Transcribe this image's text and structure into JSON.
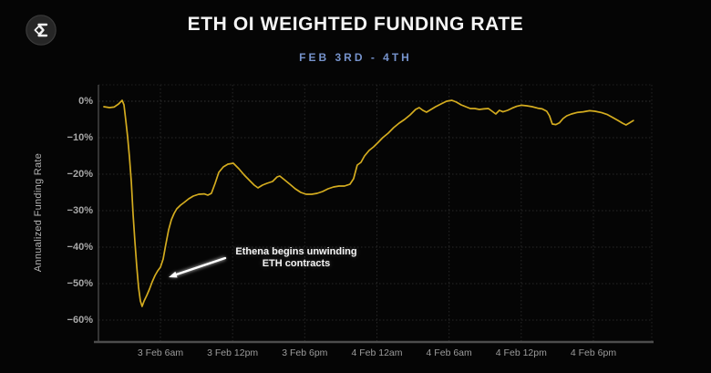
{
  "header": {
    "logo_icon": "sigma-diamond-logo",
    "title": "ETH OI WEIGHTED FUNDING RATE",
    "subtitle": "FEB 3RD - 4TH"
  },
  "colors": {
    "background": "#050505",
    "line": "#d4ac1f",
    "subtitle_accent": "#7693cc",
    "gridline": "#272727",
    "axis": "#4a4a4a",
    "tick_text": "#a8a8a8",
    "annotation_text": "#f4f4f4"
  },
  "chart_data": {
    "type": "line",
    "title": "ETH OI Weighted Funding Rate",
    "subtitle": "Feb 3rd - 4th",
    "ylabel": "Annualized Funding Rate",
    "x_unit": "hours since 3 Feb 12am",
    "ylim": [
      -65,
      5
    ],
    "grid": true,
    "y_ticks": [
      {
        "value": 0,
        "label": "0%"
      },
      {
        "value": -10,
        "label": "−10%"
      },
      {
        "value": -20,
        "label": "−20%"
      },
      {
        "value": -30,
        "label": "−30%"
      },
      {
        "value": -40,
        "label": "−40%"
      },
      {
        "value": -50,
        "label": "−50%"
      },
      {
        "value": -60,
        "label": "−60%"
      }
    ],
    "x_ticks": [
      {
        "hour": 6,
        "label": "3 Feb 6am"
      },
      {
        "hour": 12,
        "label": "3 Feb 12pm"
      },
      {
        "hour": 18,
        "label": "3 Feb 6pm"
      },
      {
        "hour": 24,
        "label": "4 Feb 12am"
      },
      {
        "hour": 30,
        "label": "4 Feb 6am"
      },
      {
        "hour": 36,
        "label": "4 Feb 12pm"
      },
      {
        "hour": 42,
        "label": "4 Feb 6pm"
      }
    ],
    "series": [
      {
        "name": "ETH OI weighted funding rate (annualized %)",
        "points": [
          [
            1.3,
            -1.5
          ],
          [
            1.76,
            -1.75
          ],
          [
            2.14,
            -1.6
          ],
          [
            2.52,
            -0.75
          ],
          [
            2.82,
            0.25
          ],
          [
            2.97,
            -1.0
          ],
          [
            3.12,
            -5.25
          ],
          [
            3.27,
            -9.75
          ],
          [
            3.42,
            -15.25
          ],
          [
            3.58,
            -22.25
          ],
          [
            3.73,
            -31
          ],
          [
            3.88,
            -38.5
          ],
          [
            4.03,
            -45.25
          ],
          [
            4.18,
            -51
          ],
          [
            4.33,
            -54.75
          ],
          [
            4.48,
            -56.25
          ],
          [
            4.64,
            -54.75
          ],
          [
            4.86,
            -53.25
          ],
          [
            5.09,
            -51.5
          ],
          [
            5.32,
            -49.5
          ],
          [
            5.55,
            -47.75
          ],
          [
            5.77,
            -46.5
          ],
          [
            6.0,
            -45.5
          ],
          [
            6.23,
            -43.25
          ],
          [
            6.45,
            -39.25
          ],
          [
            6.68,
            -35.25
          ],
          [
            6.91,
            -32.5
          ],
          [
            7.14,
            -30.75
          ],
          [
            7.36,
            -29.5
          ],
          [
            7.67,
            -28.5
          ],
          [
            7.97,
            -27.75
          ],
          [
            8.35,
            -26.75
          ],
          [
            8.73,
            -26
          ],
          [
            9.18,
            -25.5
          ],
          [
            9.64,
            -25.4
          ],
          [
            9.94,
            -25.75
          ],
          [
            10.24,
            -25.25
          ],
          [
            10.55,
            -22.5
          ],
          [
            10.85,
            -19.5
          ],
          [
            11.23,
            -18
          ],
          [
            11.61,
            -17.25
          ],
          [
            12.06,
            -17
          ],
          [
            12.52,
            -18.5
          ],
          [
            12.97,
            -20.25
          ],
          [
            13.42,
            -21.75
          ],
          [
            13.8,
            -23
          ],
          [
            14.11,
            -23.75
          ],
          [
            14.48,
            -23
          ],
          [
            14.86,
            -22.5
          ],
          [
            15.32,
            -22
          ],
          [
            15.7,
            -20.75
          ],
          [
            15.92,
            -20.5
          ],
          [
            16.3,
            -21.5
          ],
          [
            16.76,
            -22.75
          ],
          [
            17.21,
            -24
          ],
          [
            17.67,
            -25
          ],
          [
            18.12,
            -25.5
          ],
          [
            18.58,
            -25.5
          ],
          [
            19.03,
            -25.25
          ],
          [
            19.48,
            -24.75
          ],
          [
            19.94,
            -24
          ],
          [
            20.39,
            -23.5
          ],
          [
            20.85,
            -23.25
          ],
          [
            21.3,
            -23.25
          ],
          [
            21.76,
            -22.75
          ],
          [
            22.06,
            -21.25
          ],
          [
            22.36,
            -17.5
          ],
          [
            22.67,
            -16.75
          ],
          [
            22.97,
            -15
          ],
          [
            23.35,
            -13.5
          ],
          [
            23.73,
            -12.5
          ],
          [
            24.11,
            -11.25
          ],
          [
            24.48,
            -10
          ],
          [
            24.94,
            -8.75
          ],
          [
            25.39,
            -7.25
          ],
          [
            25.85,
            -6
          ],
          [
            26.3,
            -5
          ],
          [
            26.76,
            -3.75
          ],
          [
            27.21,
            -2.25
          ],
          [
            27.52,
            -1.75
          ],
          [
            27.82,
            -2.5
          ],
          [
            28.12,
            -3
          ],
          [
            28.5,
            -2.25
          ],
          [
            28.88,
            -1.5
          ],
          [
            29.33,
            -0.75
          ],
          [
            29.79,
            0
          ],
          [
            30.24,
            0.25
          ],
          [
            30.62,
            -0.25
          ],
          [
            31.0,
            -1
          ],
          [
            31.38,
            -1.5
          ],
          [
            31.76,
            -2
          ],
          [
            32.14,
            -2
          ],
          [
            32.52,
            -2.25
          ],
          [
            32.89,
            -2.1
          ],
          [
            33.27,
            -2
          ],
          [
            33.58,
            -2.75
          ],
          [
            33.88,
            -3.5
          ],
          [
            34.18,
            -2.5
          ],
          [
            34.48,
            -2.9
          ],
          [
            34.86,
            -2.5
          ],
          [
            35.24,
            -1.9
          ],
          [
            35.62,
            -1.4
          ],
          [
            36.0,
            -1.1
          ],
          [
            36.45,
            -1.25
          ],
          [
            36.91,
            -1.5
          ],
          [
            37.36,
            -1.9
          ],
          [
            37.74,
            -2.1
          ],
          [
            38.12,
            -2.75
          ],
          [
            38.35,
            -4
          ],
          [
            38.58,
            -6.25
          ],
          [
            38.88,
            -6.4
          ],
          [
            39.18,
            -5.9
          ],
          [
            39.48,
            -4.75
          ],
          [
            39.79,
            -4
          ],
          [
            40.17,
            -3.5
          ],
          [
            40.62,
            -3.1
          ],
          [
            41.15,
            -2.9
          ],
          [
            41.68,
            -2.6
          ],
          [
            42.14,
            -2.75
          ],
          [
            42.67,
            -3.1
          ],
          [
            43.12,
            -3.6
          ],
          [
            43.58,
            -4.4
          ],
          [
            44.03,
            -5.25
          ],
          [
            44.41,
            -6
          ],
          [
            44.71,
            -6.5
          ],
          [
            45.02,
            -5.9
          ],
          [
            45.32,
            -5.3
          ]
        ]
      }
    ],
    "annotation": {
      "line1": "Ethena begins unwinding",
      "line2": "ETH contracts",
      "arrow_points_at": {
        "hour": 6.76,
        "pct": -48
      }
    }
  }
}
